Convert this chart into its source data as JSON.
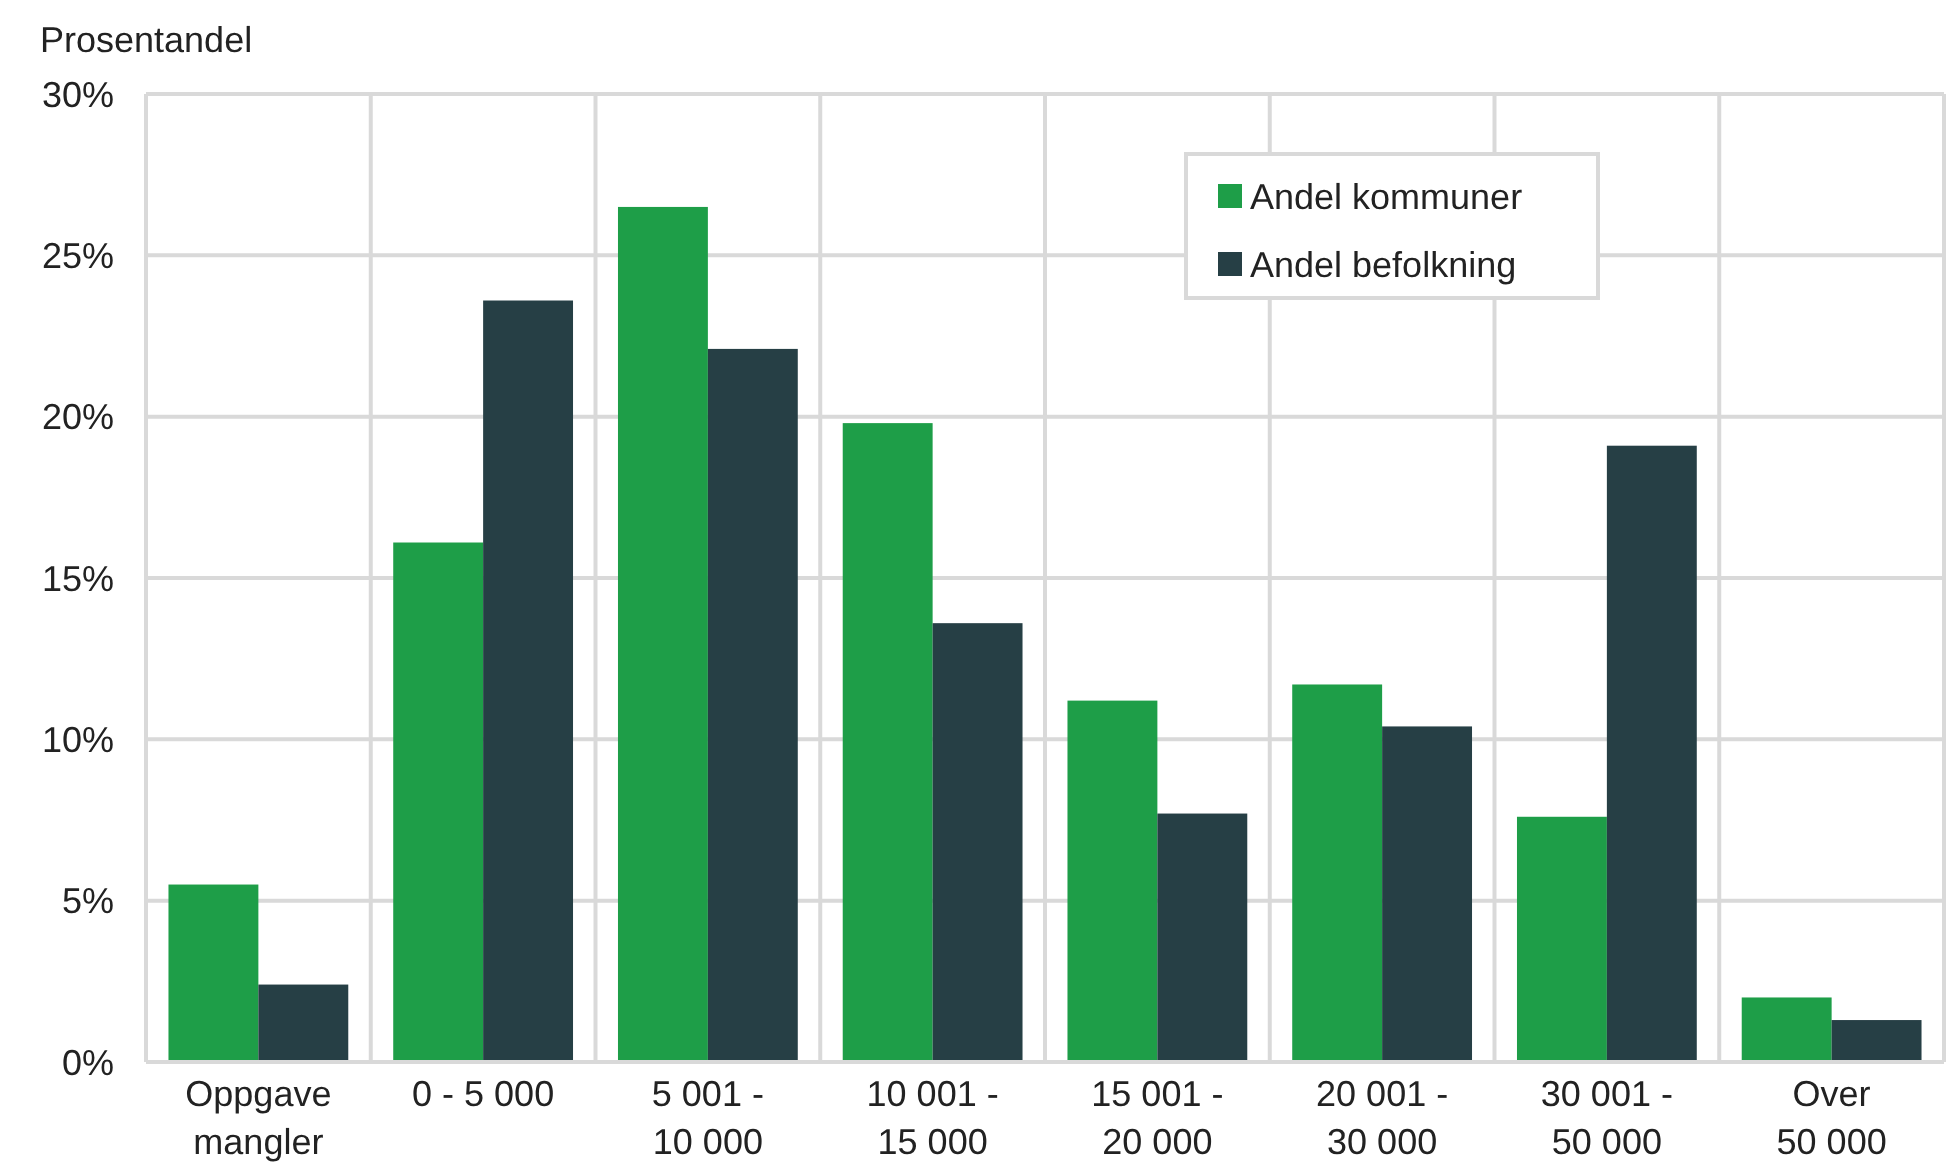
{
  "chart_data": {
    "type": "bar",
    "ylabel": "Prosentandel",
    "categories": [
      "Oppgave mangler",
      "0 - 5 000",
      "5 001 - 10 000",
      "10 001 - 15 000",
      "15 001 - 20 000",
      "20 001 - 30 000",
      "30 001 - 50 000",
      "Over 50 000"
    ],
    "series": [
      {
        "name": "Andel kommuner",
        "color": "#1e9e48",
        "values": [
          5.5,
          16.1,
          26.5,
          19.8,
          11.2,
          11.7,
          7.6,
          2.0
        ]
      },
      {
        "name": "Andel befolkning",
        "color": "#263f45",
        "values": [
          2.4,
          23.6,
          22.1,
          13.6,
          7.7,
          10.4,
          19.1,
          1.3
        ]
      }
    ],
    "ylim": [
      0,
      30
    ],
    "yticks": [
      {
        "value": 0,
        "label": "0%"
      },
      {
        "value": 5,
        "label": "5%"
      },
      {
        "value": 10,
        "label": "10%"
      },
      {
        "value": 15,
        "label": "15%"
      },
      {
        "value": 20,
        "label": "20%"
      },
      {
        "value": 25,
        "label": "25%"
      },
      {
        "value": 30,
        "label": "30%"
      }
    ],
    "grid": true,
    "legend": "top right"
  }
}
